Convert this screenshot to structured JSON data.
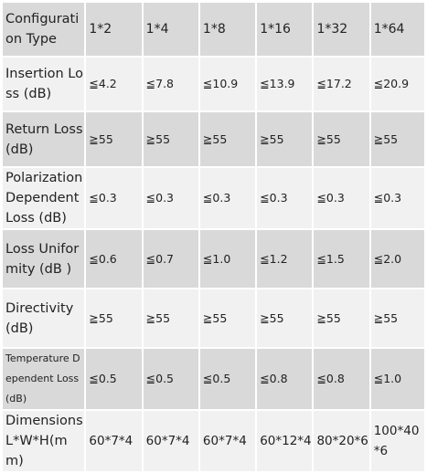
{
  "table": {
    "header": {
      "label": "Configuration Type",
      "values": [
        "1*2",
        "1*4",
        "1*8",
        "1*16",
        "1*32",
        "1*64"
      ]
    },
    "rows": [
      {
        "label": "Insertion Loss (dB)",
        "values": [
          "≦4.2",
          "≦7.8",
          "≦10.9",
          "≦13.9",
          "≦17.2",
          "≦20.9"
        ]
      },
      {
        "label": "Return Loss (dB)",
        "values": [
          "≧55",
          "≧55",
          "≧55",
          "≧55",
          "≧55",
          "≧55"
        ]
      },
      {
        "label": "Polarization Dependent Loss (dB)",
        "values": [
          "≦0.3",
          "≦0.3",
          "≦0.3",
          "≦0.3",
          "≦0.3",
          "≦0.3"
        ]
      },
      {
        "label": "Loss Uniformity (dB )",
        "values": [
          "≦0.6",
          "≦0.7",
          "≦1.0",
          "≦1.2",
          "≦1.5",
          "≦2.0"
        ]
      },
      {
        "label": "Directivity (dB)",
        "values": [
          "≧55",
          "≧55",
          "≧55",
          "≧55",
          "≧55",
          "≧55"
        ]
      },
      {
        "label": "Temperature Dependent Loss (dB)",
        "values": [
          "≦0.5",
          "≦0.5",
          "≦0.5",
          "≦0.8",
          "≦0.8",
          "≦1.0"
        ]
      },
      {
        "label": "Dimensions L*W*H(mm)",
        "values": [
          "60*7*4",
          "60*7*4",
          "60*7*4",
          "60*12*4",
          "80*20*6",
          "100*40*6"
        ]
      }
    ]
  }
}
